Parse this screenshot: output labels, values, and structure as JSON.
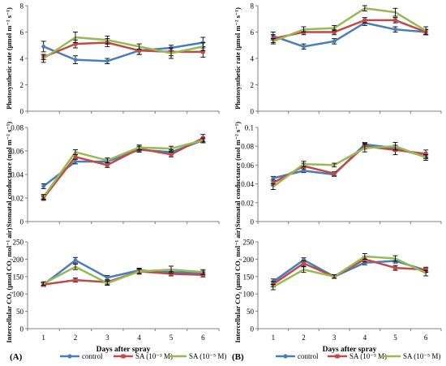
{
  "figure": {
    "panel_labels": [
      "(A)",
      "(B)"
    ],
    "xlabel": "Days after spray",
    "legend": [
      {
        "label": "control",
        "color": "#4a7ebb"
      },
      {
        "label": "SA (10⁻³ M)",
        "color": "#be4b48"
      },
      {
        "label": "SA (10⁻⁵ M)",
        "color": "#98b954"
      }
    ]
  },
  "chart_data": [
    {
      "type": "line",
      "panel": "A",
      "row": 1,
      "ylabel": "Photosynthetic rate (μmol m⁻² s⁻¹)",
      "ylim": [
        0,
        8
      ],
      "yticks": [
        "0",
        "2",
        "4",
        "6",
        "8"
      ],
      "x": [
        1,
        2,
        3,
        4,
        5,
        6
      ],
      "series": [
        {
          "name": "control",
          "color": "#4a7ebb",
          "values": [
            4.9,
            3.9,
            3.8,
            4.6,
            4.8,
            5.2
          ],
          "errors": [
            0.4,
            0.3,
            0.2,
            0.3,
            0.2,
            0.4
          ]
        },
        {
          "name": "SA (10⁻³ M)",
          "color": "#be4b48",
          "values": [
            4.1,
            5.1,
            5.2,
            4.6,
            4.5,
            4.5
          ],
          "errors": [
            0.2,
            0.3,
            0.3,
            0.3,
            0.3,
            0.4
          ]
        },
        {
          "name": "SA (10⁻⁵ M)",
          "color": "#98b954",
          "values": [
            4.0,
            5.6,
            5.4,
            4.9,
            4.4,
            4.9
          ],
          "errors": [
            0.3,
            0.4,
            0.3,
            0.2,
            0.4,
            0.3
          ]
        }
      ]
    },
    {
      "type": "line",
      "panel": "A",
      "row": 2,
      "ylabel": "Stomatal conductance (mol m⁻² s⁻¹)",
      "ylim": [
        0,
        0.08
      ],
      "yticks": [
        "0",
        "0.02",
        "0.04",
        "0.06",
        "0.08"
      ],
      "x": [
        1,
        2,
        3,
        4,
        5,
        6
      ],
      "series": [
        {
          "name": "control",
          "color": "#4a7ebb",
          "values": [
            0.03,
            0.051,
            0.051,
            0.061,
            0.059,
            0.069
          ],
          "errors": [
            0.002,
            0.002,
            0.002,
            0.002,
            0.002,
            0.002
          ]
        },
        {
          "name": "SA (10⁻³ M)",
          "color": "#be4b48",
          "values": [
            0.02,
            0.055,
            0.048,
            0.062,
            0.057,
            0.071
          ],
          "errors": [
            0.002,
            0.002,
            0.002,
            0.002,
            0.002,
            0.003
          ]
        },
        {
          "name": "SA (10⁻⁵ M)",
          "color": "#98b954",
          "values": [
            0.021,
            0.059,
            0.052,
            0.063,
            0.062,
            0.069
          ],
          "errors": [
            0.002,
            0.002,
            0.002,
            0.002,
            0.002,
            0.002
          ]
        }
      ]
    },
    {
      "type": "line",
      "panel": "A",
      "row": 3,
      "ylabel": "Intercellular CO₂ (μmol CO₂ mol⁻¹ air)",
      "ylim": [
        0,
        250
      ],
      "yticks": [
        "0",
        "50",
        "100",
        "150",
        "200",
        "250"
      ],
      "x": [
        1,
        2,
        3,
        4,
        5,
        6
      ],
      "series": [
        {
          "name": "control",
          "color": "#4a7ebb",
          "values": [
            127,
            197,
            147,
            168,
            163,
            160
          ],
          "errors": [
            5,
            8,
            6,
            6,
            6,
            6
          ]
        },
        {
          "name": "SA (10⁻³ M)",
          "color": "#be4b48",
          "values": [
            127,
            140,
            134,
            165,
            158,
            155
          ],
          "errors": [
            5,
            6,
            6,
            6,
            6,
            6
          ]
        },
        {
          "name": "SA (10⁻⁵ M)",
          "color": "#98b954",
          "values": [
            130,
            178,
            131,
            165,
            170,
            163
          ],
          "errors": [
            5,
            8,
            6,
            8,
            10,
            7
          ]
        }
      ]
    },
    {
      "type": "line",
      "panel": "B",
      "row": 1,
      "ylabel": "Photosynthetic rate (μmol m⁻² s⁻¹)",
      "ylim": [
        0,
        8
      ],
      "yticks": [
        "0",
        "2",
        "4",
        "6",
        "8"
      ],
      "x": [
        1,
        2,
        3,
        4,
        5,
        6
      ],
      "series": [
        {
          "name": "control",
          "color": "#4a7ebb",
          "values": [
            5.7,
            4.9,
            5.3,
            6.7,
            6.2,
            6.0
          ],
          "errors": [
            0.3,
            0.2,
            0.2,
            0.2,
            0.2,
            0.2
          ]
        },
        {
          "name": "SA (10⁻³ M)",
          "color": "#be4b48",
          "values": [
            5.5,
            6.0,
            6.0,
            6.9,
            6.9,
            6.0
          ],
          "errors": [
            0.3,
            0.2,
            0.2,
            0.2,
            0.2,
            0.2
          ]
        },
        {
          "name": "SA (10⁻⁵ M)",
          "color": "#98b954",
          "values": [
            5.3,
            6.2,
            6.3,
            7.8,
            7.5,
            6.1
          ],
          "errors": [
            0.2,
            0.2,
            0.2,
            0.2,
            0.3,
            0.3
          ]
        }
      ]
    },
    {
      "type": "line",
      "panel": "B",
      "row": 2,
      "ylabel": "Stomatal conductance (mol m⁻² s⁻¹)",
      "ylim": [
        0,
        0.1
      ],
      "yticks": [
        "0",
        "0.02",
        "0.04",
        "0.06",
        "0.08",
        "0.1"
      ],
      "x": [
        1,
        2,
        3,
        4,
        5,
        6
      ],
      "series": [
        {
          "name": "control",
          "color": "#4a7ebb",
          "values": [
            0.046,
            0.054,
            0.05,
            0.082,
            0.078,
            0.069
          ],
          "errors": [
            0.002,
            0.002,
            0.002,
            0.002,
            0.003,
            0.002
          ]
        },
        {
          "name": "SA (10⁻³ M)",
          "color": "#be4b48",
          "values": [
            0.041,
            0.059,
            0.051,
            0.08,
            0.076,
            0.072
          ],
          "errors": [
            0.003,
            0.003,
            0.002,
            0.003,
            0.005,
            0.004
          ]
        },
        {
          "name": "SA (10⁻⁵ M)",
          "color": "#98b954",
          "values": [
            0.037,
            0.061,
            0.06,
            0.078,
            0.08,
            0.068
          ],
          "errors": [
            0.003,
            0.003,
            0.002,
            0.004,
            0.004,
            0.003
          ]
        }
      ]
    },
    {
      "type": "line",
      "panel": "B",
      "row": 3,
      "ylabel": "Intercellular CO₂ (μmol CO₂ mol⁻¹ air)",
      "ylim": [
        0,
        250
      ],
      "yticks": [
        "0",
        "50",
        "100",
        "150",
        "200",
        "250"
      ],
      "x": [
        1,
        2,
        3,
        4,
        5,
        6
      ],
      "series": [
        {
          "name": "control",
          "color": "#4a7ebb",
          "values": [
            135,
            198,
            150,
            190,
            195,
            168
          ],
          "errors": [
            8,
            6,
            5,
            6,
            6,
            6
          ]
        },
        {
          "name": "SA (10⁻³ M)",
          "color": "#be4b48",
          "values": [
            128,
            188,
            150,
            200,
            175,
            170
          ],
          "errors": [
            8,
            8,
            5,
            8,
            7,
            7
          ]
        },
        {
          "name": "SA (10⁻⁵ M)",
          "color": "#98b954",
          "values": [
            120,
            170,
            150,
            208,
            202,
            160
          ],
          "errors": [
            8,
            8,
            5,
            8,
            8,
            8
          ]
        }
      ]
    }
  ]
}
